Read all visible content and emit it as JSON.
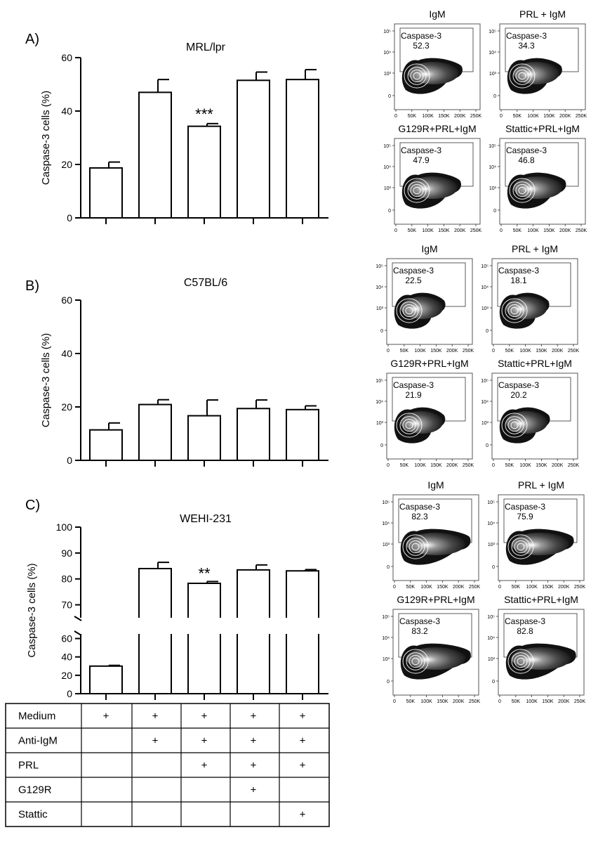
{
  "chart_data": [
    {
      "type": "bar",
      "panel": "A)",
      "title": "MRL/lpr",
      "ylabel": "Caspase-3 cells (%)",
      "ylim": [
        0,
        60
      ],
      "yticks": [
        0,
        20,
        40,
        60
      ],
      "values": [
        18.7,
        47.0,
        34.3,
        51.5,
        51.8
      ],
      "errors": [
        2.2,
        4.8,
        1.0,
        3.1,
        3.7
      ],
      "annotations": [
        {
          "index": 2,
          "text": "***"
        }
      ]
    },
    {
      "type": "bar",
      "panel": "B)",
      "title": "C57BL/6",
      "ylabel": "Caspase-3 cells (%)",
      "ylim": [
        0,
        60
      ],
      "yticks": [
        0,
        20,
        40,
        60
      ],
      "values": [
        11.4,
        20.9,
        16.7,
        19.4,
        19.0
      ],
      "errors": [
        2.6,
        1.8,
        5.9,
        3.2,
        1.4
      ],
      "annotations": []
    },
    {
      "type": "bar",
      "panel": "C)",
      "title": "WEHI-231",
      "ylabel": "Caspase-3 cells (%)",
      "axis_break": true,
      "ylim_lower": [
        0,
        65
      ],
      "yticks_lower": [
        0,
        20,
        40,
        60
      ],
      "ylim_upper": [
        65,
        100
      ],
      "yticks_upper": [
        70,
        80,
        90,
        100
      ],
      "values": [
        30.0,
        84.0,
        78.3,
        83.5,
        83.1
      ],
      "errors": [
        0.8,
        2.4,
        0.7,
        1.9,
        0.5
      ],
      "annotations": [
        {
          "index": 1,
          "text": "**"
        }
      ]
    }
  ],
  "condition_table": {
    "rows": [
      {
        "label": "Medium",
        "marks": [
          "+",
          "+",
          "+",
          "+",
          "+"
        ]
      },
      {
        "label": "Anti-IgM",
        "marks": [
          "",
          "+",
          "+",
          "+",
          "+"
        ]
      },
      {
        "label": "PRL",
        "marks": [
          "",
          "",
          "+",
          "+",
          "+"
        ]
      },
      {
        "label": "G129R",
        "marks": [
          "",
          "",
          "",
          "+",
          ""
        ]
      },
      {
        "label": "Stattic",
        "marks": [
          "",
          "",
          "",
          "",
          "+"
        ]
      }
    ]
  },
  "flow_panels": {
    "gate_label": "Caspase-3",
    "x_ticks": [
      "0",
      "50K",
      "100K",
      "150K",
      "200K",
      "250K"
    ],
    "y_ticks": [
      "0",
      "10³",
      "10⁴",
      "10⁵"
    ],
    "groups": [
      {
        "panel": "A",
        "plots": [
          {
            "title": "IgM",
            "value": "52.3"
          },
          {
            "title": "PRL + IgM",
            "value": "34.3"
          },
          {
            "title": "G129R+PRL+IgM",
            "value": "47.9"
          },
          {
            "title": "Stattic+PRL+IgM",
            "value": "46.8"
          }
        ]
      },
      {
        "panel": "B",
        "plots": [
          {
            "title": "IgM",
            "value": "22.5"
          },
          {
            "title": "PRL + IgM",
            "value": "18.1"
          },
          {
            "title": "G129R+PRL+IgM",
            "value": "21.9"
          },
          {
            "title": "Stattic+PRL+IgM",
            "value": "20.2"
          }
        ]
      },
      {
        "panel": "C",
        "plots": [
          {
            "title": "IgM",
            "value": "82.3"
          },
          {
            "title": "PRL + IgM",
            "value": "75.9"
          },
          {
            "title": "G129R+PRL+IgM",
            "value": "83.2"
          },
          {
            "title": "Stattic+PRL+IgM",
            "value": "82.8"
          }
        ]
      }
    ]
  }
}
